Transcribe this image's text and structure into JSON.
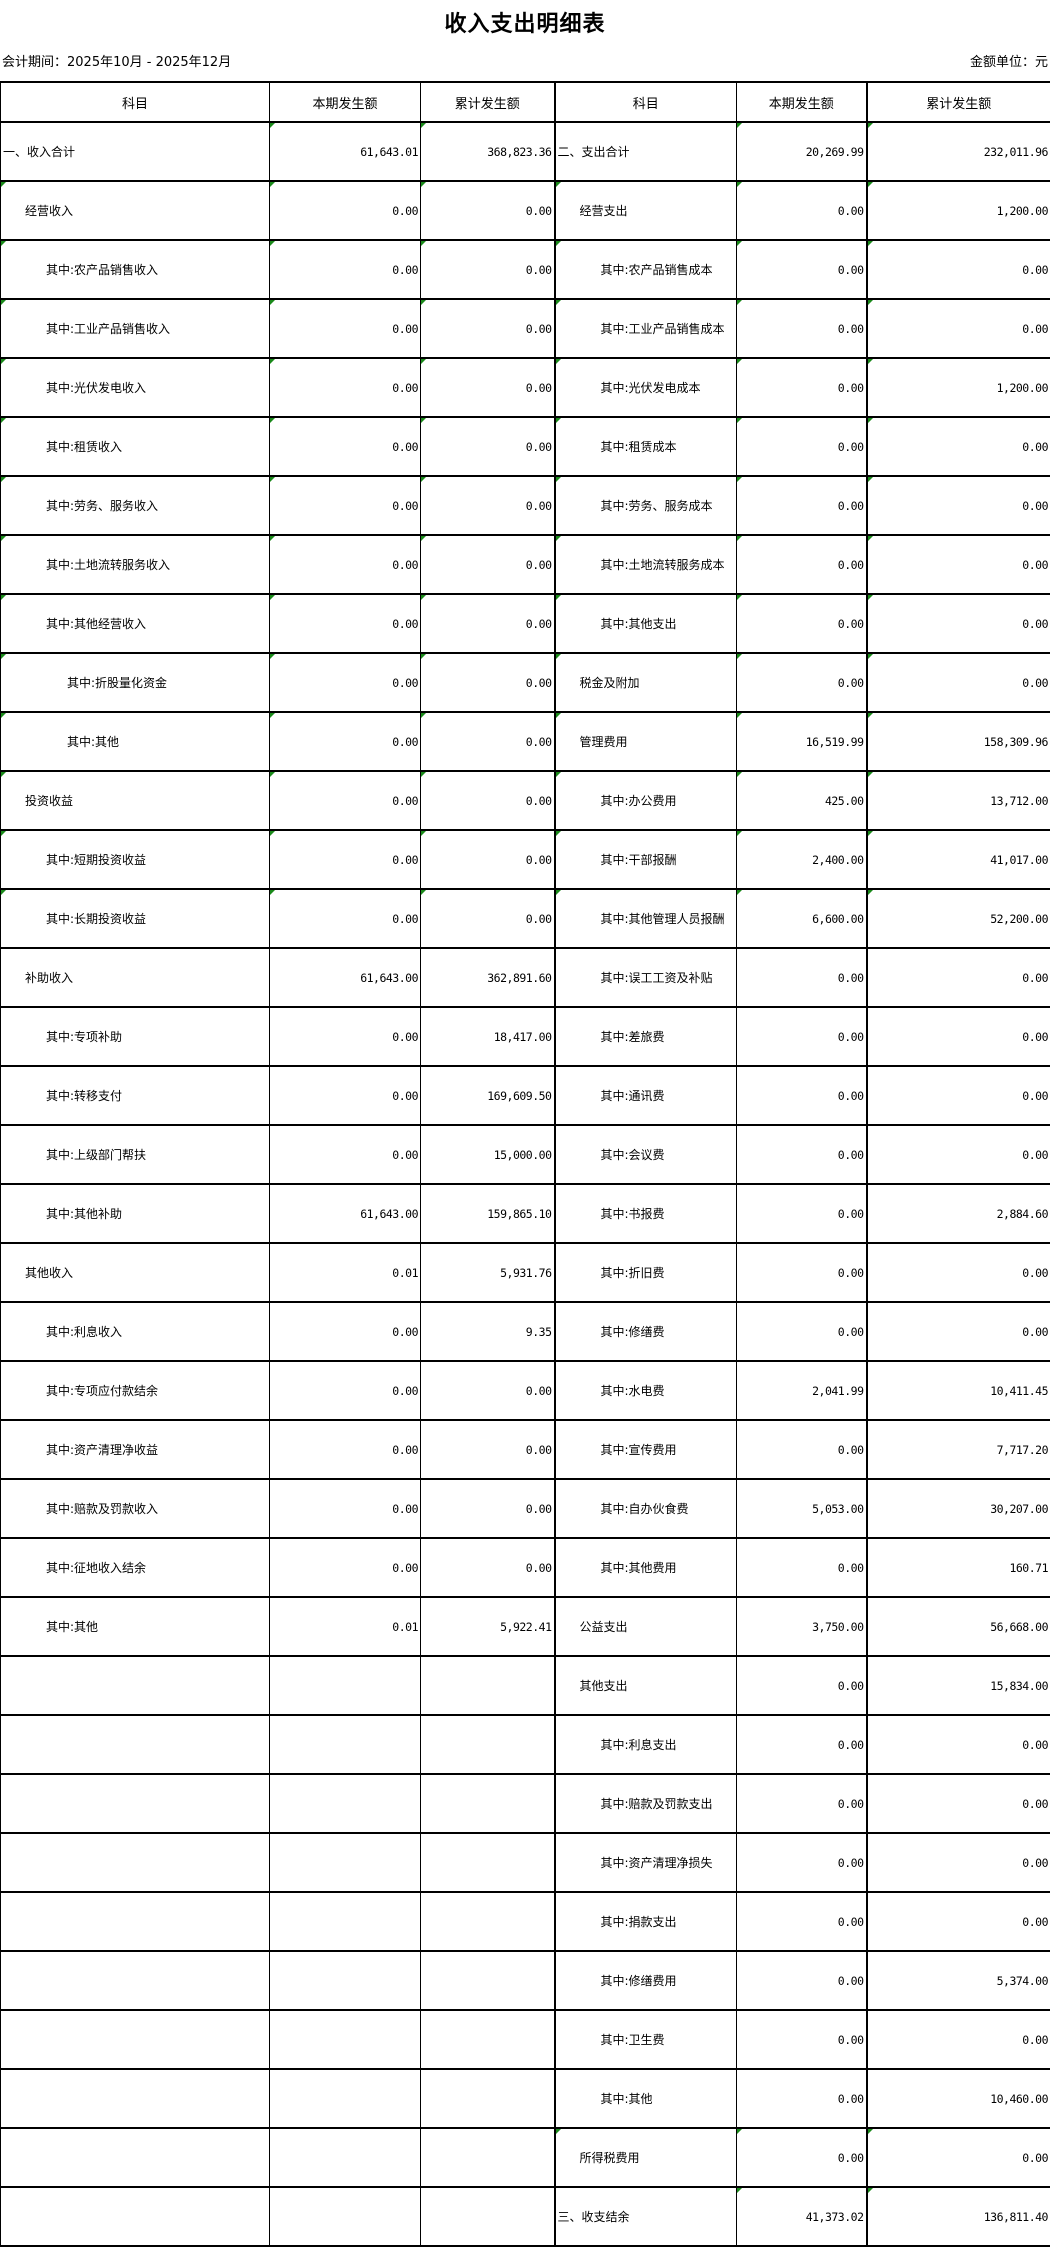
{
  "title": "收入支出明细表",
  "period": "会计期间：2025年10月 - 2025年12月",
  "unit": "金额单位：元",
  "colors": {
    "flag": "#1a8a1a",
    "border": "#000000"
  },
  "headers": [
    "科目",
    "本期发生额",
    "累计发生额",
    "科目",
    "本期发生额",
    "累计发生额"
  ],
  "rows": [
    {
      "left": {
        "label": "一、收入合计",
        "level": 0,
        "cur": "61,643.01",
        "cum": "368,823.36"
      },
      "right": {
        "label": "二、支出合计",
        "level": 0,
        "cur": "20,269.99",
        "cum": "232,011.96"
      }
    },
    {
      "left": {
        "label": "经营收入",
        "level": 1,
        "cur": "0.00",
        "cum": "0.00"
      },
      "right": {
        "label": "经营支出",
        "level": 1,
        "cur": "0.00",
        "cum": "1,200.00"
      }
    },
    {
      "left": {
        "label": "其中:农产品销售收入",
        "level": 2,
        "cur": "0.00",
        "cum": "0.00"
      },
      "right": {
        "label": "其中:农产品销售成本",
        "level": 2,
        "cur": "0.00",
        "cum": "0.00"
      }
    },
    {
      "left": {
        "label": "其中:工业产品销售收入",
        "level": 2,
        "cur": "0.00",
        "cum": "0.00"
      },
      "right": {
        "label": "其中:工业产品销售成本",
        "level": 2,
        "cur": "0.00",
        "cum": "0.00"
      }
    },
    {
      "left": {
        "label": "其中:光伏发电收入",
        "level": 2,
        "cur": "0.00",
        "cum": "0.00"
      },
      "right": {
        "label": "其中:光伏发电成本",
        "level": 2,
        "cur": "0.00",
        "cum": "1,200.00"
      }
    },
    {
      "left": {
        "label": "其中:租赁收入",
        "level": 2,
        "cur": "0.00",
        "cum": "0.00"
      },
      "right": {
        "label": "其中:租赁成本",
        "level": 2,
        "cur": "0.00",
        "cum": "0.00"
      }
    },
    {
      "left": {
        "label": "其中:劳务、服务收入",
        "level": 2,
        "cur": "0.00",
        "cum": "0.00"
      },
      "right": {
        "label": "其中:劳务、服务成本",
        "level": 2,
        "cur": "0.00",
        "cum": "0.00"
      }
    },
    {
      "left": {
        "label": "其中:土地流转服务收入",
        "level": 2,
        "cur": "0.00",
        "cum": "0.00"
      },
      "right": {
        "label": "其中:土地流转服务成本",
        "level": 2,
        "cur": "0.00",
        "cum": "0.00"
      }
    },
    {
      "left": {
        "label": "其中:其他经营收入",
        "level": 2,
        "cur": "0.00",
        "cum": "0.00"
      },
      "right": {
        "label": "其中:其他支出",
        "level": 2,
        "cur": "0.00",
        "cum": "0.00"
      }
    },
    {
      "left": {
        "label": "其中:折股量化资金",
        "level": 3,
        "cur": "0.00",
        "cum": "0.00"
      },
      "right": {
        "label": "税金及附加",
        "level": 1,
        "cur": "0.00",
        "cum": "0.00"
      }
    },
    {
      "left": {
        "label": "其中:其他",
        "level": 3,
        "cur": "0.00",
        "cum": "0.00"
      },
      "right": {
        "label": "管理费用",
        "level": 1,
        "cur": "16,519.99",
        "cum": "158,309.96"
      }
    },
    {
      "left": {
        "label": "投资收益",
        "level": 1,
        "cur": "0.00",
        "cum": "0.00"
      },
      "right": {
        "label": "其中:办公费用",
        "level": 2,
        "cur": "425.00",
        "cum": "13,712.00"
      }
    },
    {
      "left": {
        "label": "其中:短期投资收益",
        "level": 2,
        "cur": "0.00",
        "cum": "0.00"
      },
      "right": {
        "label": "其中:干部报酬",
        "level": 2,
        "cur": "2,400.00",
        "cum": "41,017.00"
      }
    },
    {
      "left": {
        "label": "其中:长期投资收益",
        "level": 2,
        "cur": "0.00",
        "cum": "0.00"
      },
      "right": {
        "label": "其中:其他管理人员报酬",
        "level": 2,
        "cur": "6,600.00",
        "cum": "52,200.00"
      }
    },
    {
      "left": {
        "label": "补助收入",
        "level": 1,
        "cur": "61,643.00",
        "cum": "362,891.60"
      },
      "right": {
        "label": "其中:误工工资及补贴",
        "level": 2,
        "cur": "0.00",
        "cum": "0.00"
      }
    },
    {
      "left": {
        "label": "其中:专项补助",
        "level": 2,
        "cur": "0.00",
        "cum": "18,417.00"
      },
      "right": {
        "label": "其中:差旅费",
        "level": 2,
        "cur": "0.00",
        "cum": "0.00"
      }
    },
    {
      "left": {
        "label": "其中:转移支付",
        "level": 2,
        "cur": "0.00",
        "cum": "169,609.50"
      },
      "right": {
        "label": "其中:通讯费",
        "level": 2,
        "cur": "0.00",
        "cum": "0.00"
      }
    },
    {
      "left": {
        "label": "其中:上级部门帮扶",
        "level": 2,
        "cur": "0.00",
        "cum": "15,000.00"
      },
      "right": {
        "label": "其中:会议费",
        "level": 2,
        "cur": "0.00",
        "cum": "0.00"
      }
    },
    {
      "left": {
        "label": "其中:其他补助",
        "level": 2,
        "cur": "61,643.00",
        "cum": "159,865.10"
      },
      "right": {
        "label": "其中:书报费",
        "level": 2,
        "cur": "0.00",
        "cum": "2,884.60"
      }
    },
    {
      "left": {
        "label": "其他收入",
        "level": 1,
        "cur": "0.01",
        "cum": "5,931.76"
      },
      "right": {
        "label": "其中:折旧费",
        "level": 2,
        "cur": "0.00",
        "cum": "0.00"
      }
    },
    {
      "left": {
        "label": "其中:利息收入",
        "level": 2,
        "cur": "0.00",
        "cum": "9.35"
      },
      "right": {
        "label": "其中:修缮费",
        "level": 2,
        "cur": "0.00",
        "cum": "0.00"
      }
    },
    {
      "left": {
        "label": "其中:专项应付款结余",
        "level": 2,
        "cur": "0.00",
        "cum": "0.00"
      },
      "right": {
        "label": "其中:水电费",
        "level": 2,
        "cur": "2,041.99",
        "cum": "10,411.45"
      }
    },
    {
      "left": {
        "label": "其中:资产清理净收益",
        "level": 2,
        "cur": "0.00",
        "cum": "0.00"
      },
      "right": {
        "label": "其中:宣传费用",
        "level": 2,
        "cur": "0.00",
        "cum": "7,717.20"
      }
    },
    {
      "left": {
        "label": "其中:赔款及罚款收入",
        "level": 2,
        "cur": "0.00",
        "cum": "0.00"
      },
      "right": {
        "label": "其中:自办伙食费",
        "level": 2,
        "cur": "5,053.00",
        "cum": "30,207.00"
      }
    },
    {
      "left": {
        "label": "其中:征地收入结余",
        "level": 2,
        "cur": "0.00",
        "cum": "0.00"
      },
      "right": {
        "label": "其中:其他费用",
        "level": 2,
        "cur": "0.00",
        "cum": "160.71"
      }
    },
    {
      "left": {
        "label": "其中:其他",
        "level": 2,
        "cur": "0.01",
        "cum": "5,922.41"
      },
      "right": {
        "label": "公益支出",
        "level": 1,
        "cur": "3,750.00",
        "cum": "56,668.00"
      }
    },
    {
      "left": null,
      "right": {
        "label": "其他支出",
        "level": 1,
        "cur": "0.00",
        "cum": "15,834.00"
      }
    },
    {
      "left": null,
      "right": {
        "label": "其中:利息支出",
        "level": 2,
        "cur": "0.00",
        "cum": "0.00"
      }
    },
    {
      "left": null,
      "right": {
        "label": "其中:赔款及罚款支出",
        "level": 2,
        "cur": "0.00",
        "cum": "0.00"
      }
    },
    {
      "left": null,
      "right": {
        "label": "其中:资产清理净损失",
        "level": 2,
        "cur": "0.00",
        "cum": "0.00"
      }
    },
    {
      "left": null,
      "right": {
        "label": "其中:捐款支出",
        "level": 2,
        "cur": "0.00",
        "cum": "0.00"
      }
    },
    {
      "left": null,
      "right": {
        "label": "其中:修缮费用",
        "level": 2,
        "cur": "0.00",
        "cum": "5,374.00"
      }
    },
    {
      "left": null,
      "right": {
        "label": "其中:卫生费",
        "level": 2,
        "cur": "0.00",
        "cum": "0.00"
      }
    },
    {
      "left": null,
      "right": {
        "label": "其中:其他",
        "level": 2,
        "cur": "0.00",
        "cum": "10,460.00"
      }
    },
    {
      "left": null,
      "right": {
        "label": "所得税费用",
        "level": 1,
        "cur": "0.00",
        "cum": "0.00"
      }
    },
    {
      "left": null,
      "right": {
        "label": "三、收支结余",
        "level": 0,
        "cur": "41,373.02",
        "cum": "136,811.40"
      }
    }
  ]
}
